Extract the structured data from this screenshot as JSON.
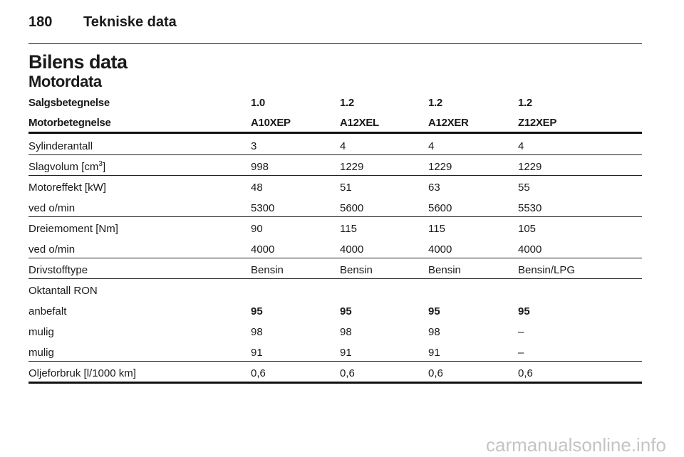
{
  "header": {
    "page_number": "180",
    "title": "Tekniske data"
  },
  "heading": "Bilens data",
  "subheading": "Motordata",
  "table": {
    "header_rows": [
      {
        "label": "Salgsbetegnelse",
        "values": [
          "1.0",
          "1.2",
          "1.2",
          "1.2"
        ]
      },
      {
        "label": "Motorbetegnelse",
        "values": [
          "A10XEP",
          "A12XEL",
          "A12XER",
          "Z12XEP"
        ]
      }
    ],
    "groups": [
      [
        {
          "label": "Sylinderantall",
          "values": [
            "3",
            "4",
            "4",
            "4"
          ]
        }
      ],
      [
        {
          "label": [
            "Slagvolum [cm",
            "3",
            "]"
          ],
          "values": [
            "998",
            "1229",
            "1229",
            "1229"
          ]
        }
      ],
      [
        {
          "label": "Motoreffekt [kW]",
          "values": [
            "48",
            "51",
            "63",
            "55"
          ]
        },
        {
          "label": "ved o/min",
          "values": [
            "5300",
            "5600",
            "5600",
            "5530"
          ]
        }
      ],
      [
        {
          "label": "Dreiemoment [Nm]",
          "values": [
            "90",
            "115",
            "115",
            "105"
          ]
        },
        {
          "label": "ved o/min",
          "values": [
            "4000",
            "4000",
            "4000",
            "4000"
          ]
        }
      ],
      [
        {
          "label": "Drivstofftype",
          "values": [
            "Bensin",
            "Bensin",
            "Bensin",
            "Bensin/LPG"
          ]
        }
      ],
      [
        {
          "label": "Oktantall RON",
          "values": []
        },
        {
          "label": "anbefalt",
          "values": [
            "95",
            "95",
            "95",
            "95"
          ]
        },
        {
          "label": "mulig",
          "values": [
            "98",
            "98",
            "98",
            "–"
          ]
        },
        {
          "label": "mulig",
          "values": [
            "91",
            "91",
            "91",
            "–"
          ]
        }
      ],
      [
        {
          "label": "Oljeforbruk [l/1000 km]",
          "values": [
            "0,6",
            "0,6",
            "0,6",
            "0,6"
          ]
        }
      ]
    ]
  },
  "watermark": "carmanualsonline.info"
}
